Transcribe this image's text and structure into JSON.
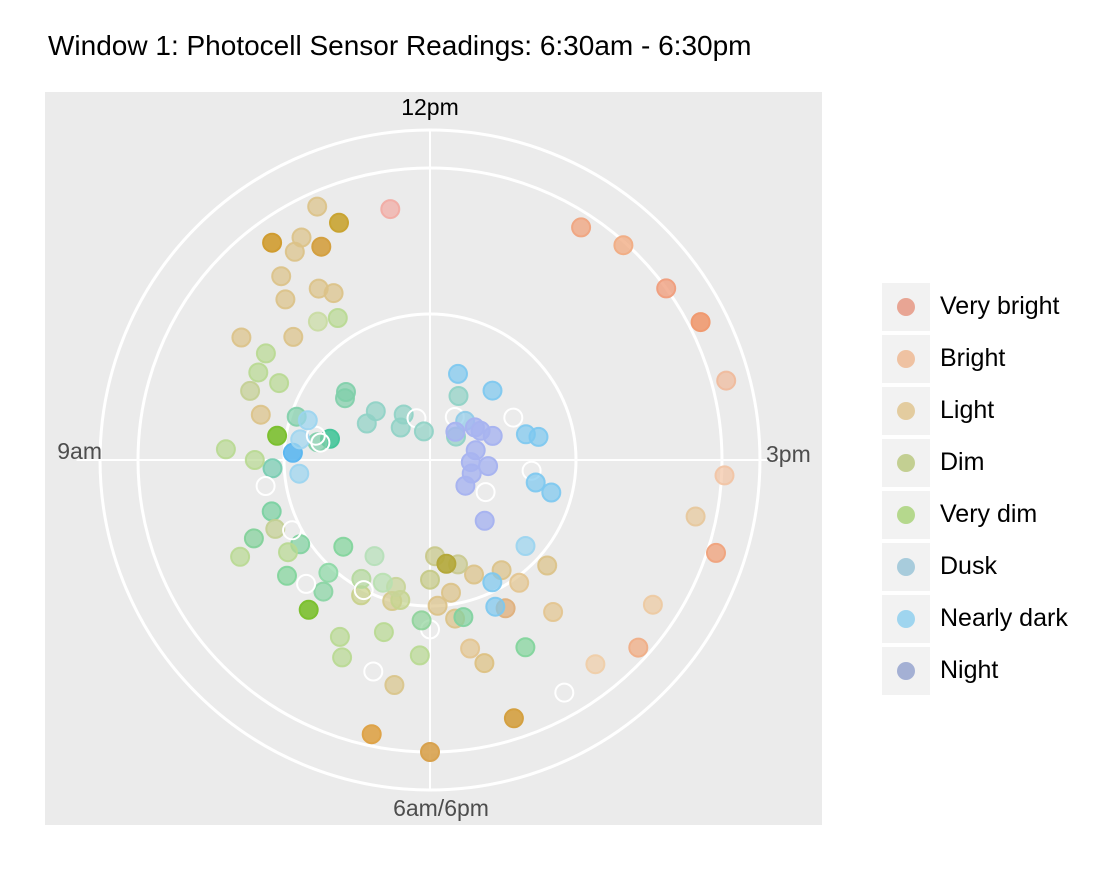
{
  "chart_data": {
    "type": "scatter",
    "title": "Window 1: Photocell Sensor Readings: 6:30am - 6:30pm",
    "coordinate_system": "polar",
    "angle_tick_labels": [
      {
        "hour": 12,
        "label": "12pm"
      },
      {
        "hour": 15,
        "label": "3pm"
      },
      {
        "hour": 18,
        "label": "6am/6pm"
      },
      {
        "hour": 9,
        "label": "9am"
      }
    ],
    "angle_range_hours": [
      6,
      18
    ],
    "radius_range": [
      0,
      1
    ],
    "grid": true,
    "legend_position": "right",
    "legend": [
      {
        "key": "very_bright",
        "label": "Very bright",
        "color": "#e8a594"
      },
      {
        "key": "bright",
        "label": "Bright",
        "color": "#efc2a2"
      },
      {
        "key": "light",
        "label": "Light",
        "color": "#e3cc9f"
      },
      {
        "key": "dim",
        "label": "Dim",
        "color": "#c3cf92"
      },
      {
        "key": "very_dim",
        "label": "Very dim",
        "color": "#b5d88d"
      },
      {
        "key": "dusk",
        "label": "Dusk",
        "color": "#a8ccdc"
      },
      {
        "key": "nearly_dark",
        "label": "Nearly dark",
        "color": "#9fd5ef"
      },
      {
        "key": "night",
        "label": "Night",
        "color": "#a4b0d4"
      }
    ],
    "points": [
      {
        "hour": 11.85,
        "r": 0.87,
        "c": "#f2aaa2",
        "a": 0.7,
        "f": true
      },
      {
        "hour": 12.55,
        "r": 0.95,
        "c": "#f0a783",
        "a": 0.8,
        "f": true
      },
      {
        "hour": 12.7,
        "r": 0.99,
        "c": "#f1ae86",
        "a": 0.8,
        "f": true
      },
      {
        "hour": 12.9,
        "r": 1.0,
        "c": "#f0a080",
        "a": 0.8,
        "f": true
      },
      {
        "hour": 13.05,
        "r": 1.04,
        "c": "#f09a70",
        "a": 0.9,
        "f": true
      },
      {
        "hour": 13.25,
        "r": 1.05,
        "c": "#f0b99a",
        "a": 0.7,
        "f": true
      },
      {
        "hour": 13.55,
        "r": 1.01,
        "c": "#f2c3a3",
        "a": 0.7,
        "f": true
      },
      {
        "hour": 13.8,
        "r": 1.03,
        "c": "#f0a580",
        "a": 0.8,
        "f": true
      },
      {
        "hour": 13.7,
        "r": 0.93,
        "c": "#e7c79a",
        "a": 0.7,
        "f": true
      },
      {
        "hour": 14.05,
        "r": 0.91,
        "c": "#edc9a0",
        "a": 0.7,
        "f": true
      },
      {
        "hour": 14.2,
        "r": 0.96,
        "c": "#f0b08a",
        "a": 0.8,
        "f": true
      },
      {
        "hour": 14.35,
        "r": 0.9,
        "c": "#f0cda6",
        "a": 0.7,
        "f": true
      },
      {
        "hour": 14.5,
        "r": 0.92,
        "c": "#f5f5f5",
        "a": 1,
        "f": false
      },
      {
        "hour": 14.7,
        "r": 0.93,
        "c": "#d4a040",
        "a": 0.9,
        "f": true
      },
      {
        "hour": 15.0,
        "r": 1.0,
        "c": "#d8a24e",
        "a": 0.9,
        "f": true
      },
      {
        "hour": 15.2,
        "r": 0.96,
        "c": "#dea348",
        "a": 0.9,
        "f": true
      },
      {
        "hour": 14.35,
        "r": 0.67,
        "c": "#e3c48f",
        "a": 0.7,
        "f": true
      },
      {
        "hour": 14.75,
        "r": 0.72,
        "c": "#ddc080",
        "a": 0.7,
        "f": true
      },
      {
        "hour": 15.15,
        "r": 0.78,
        "c": "#d9c48a",
        "a": 0.7,
        "f": true
      },
      {
        "hour": 14.4,
        "r": 0.52,
        "c": "#e3c48f",
        "a": 0.7,
        "f": true
      },
      {
        "hour": 14.55,
        "r": 0.57,
        "c": "#e0b280",
        "a": 0.8,
        "f": true
      },
      {
        "hour": 14.85,
        "r": 0.55,
        "c": "#dcc287",
        "a": 0.7,
        "f": true
      },
      {
        "hour": 14.8,
        "r": 0.66,
        "c": "#e3c48f",
        "a": 0.7,
        "f": true
      },
      {
        "hour": 14.2,
        "r": 0.54,
        "c": "#dcc287",
        "a": 0.7,
        "f": true
      },
      {
        "hour": 14.85,
        "r": 0.46,
        "c": "#dcc287",
        "a": 0.7,
        "f": true
      },
      {
        "hour": 14.65,
        "r": 0.42,
        "c": "#dcc287",
        "a": 0.7,
        "f": true
      },
      {
        "hour": 15.25,
        "r": 0.5,
        "c": "#d5c88a",
        "a": 0.7,
        "f": true
      },
      {
        "hour": 14.95,
        "r": 0.5,
        "c": "#dcc287",
        "a": 0.7,
        "f": true
      },
      {
        "hour": 14.45,
        "r": 0.45,
        "c": "#dcc287",
        "a": 0.7,
        "f": true
      },
      {
        "hour": 14.75,
        "r": 0.37,
        "c": "#c9c98e",
        "a": 0.7,
        "f": true
      },
      {
        "hour": 15.0,
        "r": 0.41,
        "c": "#c4c985",
        "a": 0.7,
        "f": true
      },
      {
        "hour": 14.95,
        "r": 0.33,
        "c": "#c8c888",
        "a": 0.7,
        "f": true
      },
      {
        "hour": 14.85,
        "r": 0.36,
        "c": "#b4a83a",
        "a": 0.9,
        "f": true
      },
      {
        "hour": 15.45,
        "r": 0.52,
        "c": "#c8d089",
        "a": 0.7,
        "f": true
      },
      {
        "hour": 15.2,
        "r": 0.49,
        "c": "#c4d48e",
        "a": 0.7,
        "f": true
      },
      {
        "hour": 15.25,
        "r": 0.45,
        "c": "#c8d498",
        "a": 0.7,
        "f": true
      },
      {
        "hour": 15.0,
        "r": 0.58,
        "c": "#f5f5f5",
        "a": 1,
        "f": false
      },
      {
        "hour": 15.35,
        "r": 0.45,
        "c": "#b8e0b0",
        "a": 0.7,
        "f": true
      },
      {
        "hour": 15.5,
        "r": 0.47,
        "c": "#b4d89c",
        "a": 0.7,
        "f": true
      },
      {
        "hour": 15.45,
        "r": 0.5,
        "c": "#f5f5f5",
        "a": 1,
        "f": false
      },
      {
        "hour": 15.5,
        "r": 0.38,
        "c": "#b5dfb8",
        "a": 0.7,
        "f": true
      },
      {
        "hour": 15.7,
        "r": 0.52,
        "c": "#8cd8a5",
        "a": 0.7,
        "f": true
      },
      {
        "hour": 15.75,
        "r": 0.42,
        "c": "#80d49a",
        "a": 0.7,
        "f": true
      },
      {
        "hour": 15.65,
        "r": 0.58,
        "c": "#88d4a3",
        "a": 0.7,
        "f": true
      },
      {
        "hour": 16.1,
        "r": 0.66,
        "c": "#80d098",
        "a": 0.7,
        "f": true
      },
      {
        "hour": 15.85,
        "r": 0.63,
        "c": "#80d49a",
        "a": 0.7,
        "f": true
      },
      {
        "hour": 15.95,
        "r": 0.53,
        "c": "#7fd29f",
        "a": 0.7,
        "f": true
      },
      {
        "hour": 16.2,
        "r": 0.57,
        "c": "#78d0a0",
        "a": 0.7,
        "f": true
      },
      {
        "hour": 16.45,
        "r": 0.54,
        "c": "#75ccb0",
        "a": 0.7,
        "f": true
      },
      {
        "hour": 16.7,
        "r": 0.35,
        "c": "#45c59a",
        "a": 0.9,
        "f": true
      },
      {
        "hour": 16.8,
        "r": 0.48,
        "c": "#7fcfaa",
        "a": 0.7,
        "f": true
      },
      {
        "hour": 16.65,
        "r": 0.39,
        "c": "#7fcfaa",
        "a": 0.7,
        "f": true
      },
      {
        "hour": 17.1,
        "r": 0.36,
        "c": "#7fcfaa",
        "a": 0.7,
        "f": true
      },
      {
        "hour": 17.2,
        "r": 0.25,
        "c": "#8fd1c5",
        "a": 0.7,
        "f": true
      },
      {
        "hour": 17.15,
        "r": 0.37,
        "c": "#7fcfaa",
        "a": 0.7,
        "f": true
      },
      {
        "hour": 17.0,
        "r": 0.25,
        "c": "#8fd1c5",
        "a": 0.7,
        "f": true
      },
      {
        "hour": 17.3,
        "r": 0.15,
        "c": "#8fd1c5",
        "a": 0.7,
        "f": true
      },
      {
        "hour": 17.5,
        "r": 0.18,
        "c": "#8fd1c5",
        "a": 0.7,
        "f": true
      },
      {
        "hour": 17.7,
        "r": 0.15,
        "c": "#f5f5f5",
        "a": 1,
        "f": false
      },
      {
        "hour": 17.8,
        "r": 0.1,
        "c": "#8fd1c5",
        "a": 0.7,
        "f": true
      },
      {
        "hour": 18.5,
        "r": 0.17,
        "c": "#f5f5f5",
        "a": 1,
        "f": false
      },
      {
        "hour": 18.8,
        "r": 0.12,
        "c": "#8fd1c5",
        "a": 0.7,
        "f": true
      },
      {
        "hour": 18.4,
        "r": 0.24,
        "c": "#8fd1c5",
        "a": 0.7,
        "f": true
      },
      {
        "hour": 18.7,
        "r": 0.18,
        "c": "#8ecbe8",
        "a": 0.7,
        "f": true
      },
      {
        "hour": 19.15,
        "r": 0.23,
        "c": "#a8b4f0",
        "a": 0.8,
        "f": true
      },
      {
        "hour": 19.3,
        "r": 0.16,
        "c": "#a8b4f0",
        "a": 0.8,
        "f": true
      },
      {
        "hour": 19.55,
        "r": 0.14,
        "c": "#a8b4f0",
        "a": 0.8,
        "f": true
      },
      {
        "hour": 19.8,
        "r": 0.15,
        "c": "#a8b4f0",
        "a": 0.8,
        "f": true
      },
      {
        "hour": 20.1,
        "r": 0.15,
        "c": "#a8b4f0",
        "a": 0.8,
        "f": true
      },
      {
        "hour": 19.0,
        "r": 0.2,
        "c": "#a8b4f0",
        "a": 0.8,
        "f": true
      },
      {
        "hour": 18.9,
        "r": 0.19,
        "c": "#a8b4f0",
        "a": 0.8,
        "f": true
      },
      {
        "hour": 18.7,
        "r": 0.13,
        "c": "#a8b4f0",
        "a": 0.8,
        "f": true
      },
      {
        "hour": 19.6,
        "r": 0.2,
        "c": "#a8b4f0",
        "a": 0.8,
        "f": true
      },
      {
        "hour": 20.3,
        "r": 0.28,
        "c": "#a8b4f0",
        "a": 0.8,
        "f": true
      },
      {
        "hour": 20.0,
        "r": 0.22,
        "c": "#f5f5f5",
        "a": 1,
        "f": false
      },
      {
        "hour": 18.3,
        "r": 0.31,
        "c": "#7cc8f0",
        "a": 0.7,
        "f": true
      },
      {
        "hour": 18.7,
        "r": 0.32,
        "c": "#7cc8f0",
        "a": 0.7,
        "f": true
      },
      {
        "hour": 19.05,
        "r": 0.32,
        "c": "#f5f5f5",
        "a": 1,
        "f": false
      },
      {
        "hour": 19.25,
        "r": 0.34,
        "c": "#7cc8f0",
        "a": 0.7,
        "f": true
      },
      {
        "hour": 19.3,
        "r": 0.38,
        "c": "#7cc8f0",
        "a": 0.7,
        "f": true
      },
      {
        "hour": 19.6,
        "r": 0.35,
        "c": "#f5f5f5",
        "a": 1,
        "f": false
      },
      {
        "hour": 19.7,
        "r": 0.37,
        "c": "#7cc8f0",
        "a": 0.7,
        "f": true
      },
      {
        "hour": 19.75,
        "r": 0.43,
        "c": "#7cc8f0",
        "a": 0.7,
        "f": true
      },
      {
        "hour": 20.2,
        "r": 0.44,
        "c": "#9ad4ef",
        "a": 0.7,
        "f": true
      },
      {
        "hour": 20.55,
        "r": 0.47,
        "c": "#7cc8f0",
        "a": 0.7,
        "f": true
      },
      {
        "hour": 20.6,
        "r": 0.55,
        "c": "#7cc8f0",
        "a": 0.7,
        "f": true
      },
      {
        "hour": 20.55,
        "r": 0.72,
        "c": "#80d49a",
        "a": 0.7,
        "f": true
      },
      {
        "hour": 20.8,
        "r": 0.55,
        "c": "#7fd29f",
        "a": 0.7,
        "f": true
      },
      {
        "hour": 21.05,
        "r": 0.55,
        "c": "#8ed39a",
        "a": 0.7,
        "f": true
      },
      {
        "hour": 21.25,
        "r": 0.61,
        "c": "#b8d991",
        "a": 0.7,
        "f": true
      },
      {
        "hour": 21.45,
        "r": 0.68,
        "c": "#b8d991",
        "a": 0.7,
        "f": true
      },
      {
        "hour": 21.05,
        "r": 0.67,
        "c": "#b8d991",
        "a": 0.7,
        "f": true
      },
      {
        "hour": 21.25,
        "r": 0.75,
        "c": "#f5f5f5",
        "a": 1,
        "f": false
      },
      {
        "hour": 21.4,
        "r": 0.74,
        "c": "#b8d991",
        "a": 0.7,
        "f": true
      },
      {
        "hour": 21.65,
        "r": 0.66,
        "c": "#7cc030",
        "a": 0.9,
        "f": true
      },
      {
        "hour": 21.75,
        "r": 0.6,
        "c": "#f5f5f5",
        "a": 1,
        "f": false
      },
      {
        "hour": 21.95,
        "r": 0.58,
        "c": "#b8d991",
        "a": 0.7,
        "f": true
      },
      {
        "hour": 22.1,
        "r": 0.58,
        "c": "#c3cf92",
        "a": 0.7,
        "f": true
      },
      {
        "hour": 22.05,
        "r": 0.73,
        "c": "#b8d991",
        "a": 0.7,
        "f": true
      },
      {
        "hour": 22.05,
        "r": 0.53,
        "c": "#f5f5f5",
        "a": 1,
        "f": false
      },
      {
        "hour": 22.4,
        "r": 0.45,
        "c": "#9ad4ef",
        "a": 0.7,
        "f": true
      },
      {
        "hour": 22.55,
        "r": 0.47,
        "c": "#5cb7f0",
        "a": 0.9,
        "f": true
      },
      {
        "hour": 22.65,
        "r": 0.38,
        "c": "#f5f5f5",
        "a": 1,
        "f": false
      },
      {
        "hour": 22.65,
        "r": 0.45,
        "c": "#9fd5ef",
        "a": 0.7,
        "f": true
      },
      {
        "hour": 22.7,
        "r": 0.4,
        "c": "#f5f5f5",
        "a": 1,
        "f": false
      },
      {
        "hour": 22.5,
        "r": 0.6,
        "c": "#b8d991",
        "a": 0.7,
        "f": true
      },
      {
        "hour": 22.35,
        "r": 0.57,
        "c": "#f5f5f5",
        "a": 1,
        "f": false
      },
      {
        "hour": 22.8,
        "r": 0.44,
        "c": "#9ad4ef",
        "a": 0.7,
        "f": true
      },
      {
        "hour": 22.55,
        "r": 0.7,
        "c": "#b8d991",
        "a": 0.7,
        "f": true
      },
      {
        "hour": 22.65,
        "r": 0.53,
        "c": "#7cc030",
        "a": 0.9,
        "f": true
      },
      {
        "hour": 22.75,
        "r": 0.6,
        "c": "#dcc287",
        "a": 0.7,
        "f": true
      },
      {
        "hour": 22.85,
        "r": 0.66,
        "c": "#c3cf92",
        "a": 0.7,
        "f": true
      },
      {
        "hour": 22.95,
        "r": 0.58,
        "c": "#b8d991",
        "a": 0.7,
        "f": true
      },
      {
        "hour": 22.95,
        "r": 0.66,
        "c": "#b8d991",
        "a": 0.7,
        "f": true
      },
      {
        "hour": 23.05,
        "r": 0.67,
        "c": "#b8d991",
        "a": 0.7,
        "f": true
      },
      {
        "hour": 23.2,
        "r": 0.63,
        "c": "#dcc287",
        "a": 0.7,
        "f": true
      },
      {
        "hour": 23.35,
        "r": 0.61,
        "c": "#c9dca2",
        "a": 0.7,
        "f": true
      },
      {
        "hour": 23.45,
        "r": 0.58,
        "c": "#b8d991",
        "a": 0.7,
        "f": true
      },
      {
        "hour": 23.5,
        "r": 0.66,
        "c": "#dcc287",
        "a": 0.7,
        "f": true
      },
      {
        "hour": 23.05,
        "r": 0.77,
        "c": "#dcc287",
        "a": 0.7,
        "f": true
      },
      {
        "hour": 23.3,
        "r": 0.74,
        "c": "#dcc287",
        "a": 0.7,
        "f": true
      },
      {
        "hour": 23.45,
        "r": 0.7,
        "c": "#dcc287",
        "a": 0.7,
        "f": true
      },
      {
        "hour": 23.35,
        "r": 0.81,
        "c": "#dcc287",
        "a": 0.7,
        "f": true
      },
      {
        "hour": 23.45,
        "r": 0.85,
        "c": "#dcc287",
        "a": 0.7,
        "f": true
      },
      {
        "hour": 23.55,
        "r": 0.82,
        "c": "#d4a040",
        "a": 0.9,
        "f": true
      },
      {
        "hour": 23.4,
        "r": 0.92,
        "c": "#d09c30",
        "a": 0.9,
        "f": true
      },
      {
        "hour": 23.5,
        "r": 0.88,
        "c": "#dcc287",
        "a": 0.7,
        "f": true
      },
      {
        "hour": 23.6,
        "r": 0.95,
        "c": "#dcc287",
        "a": 0.7,
        "f": true
      },
      {
        "hour": 23.65,
        "r": 0.87,
        "c": "#c9a432",
        "a": 0.9,
        "f": true
      }
    ]
  }
}
